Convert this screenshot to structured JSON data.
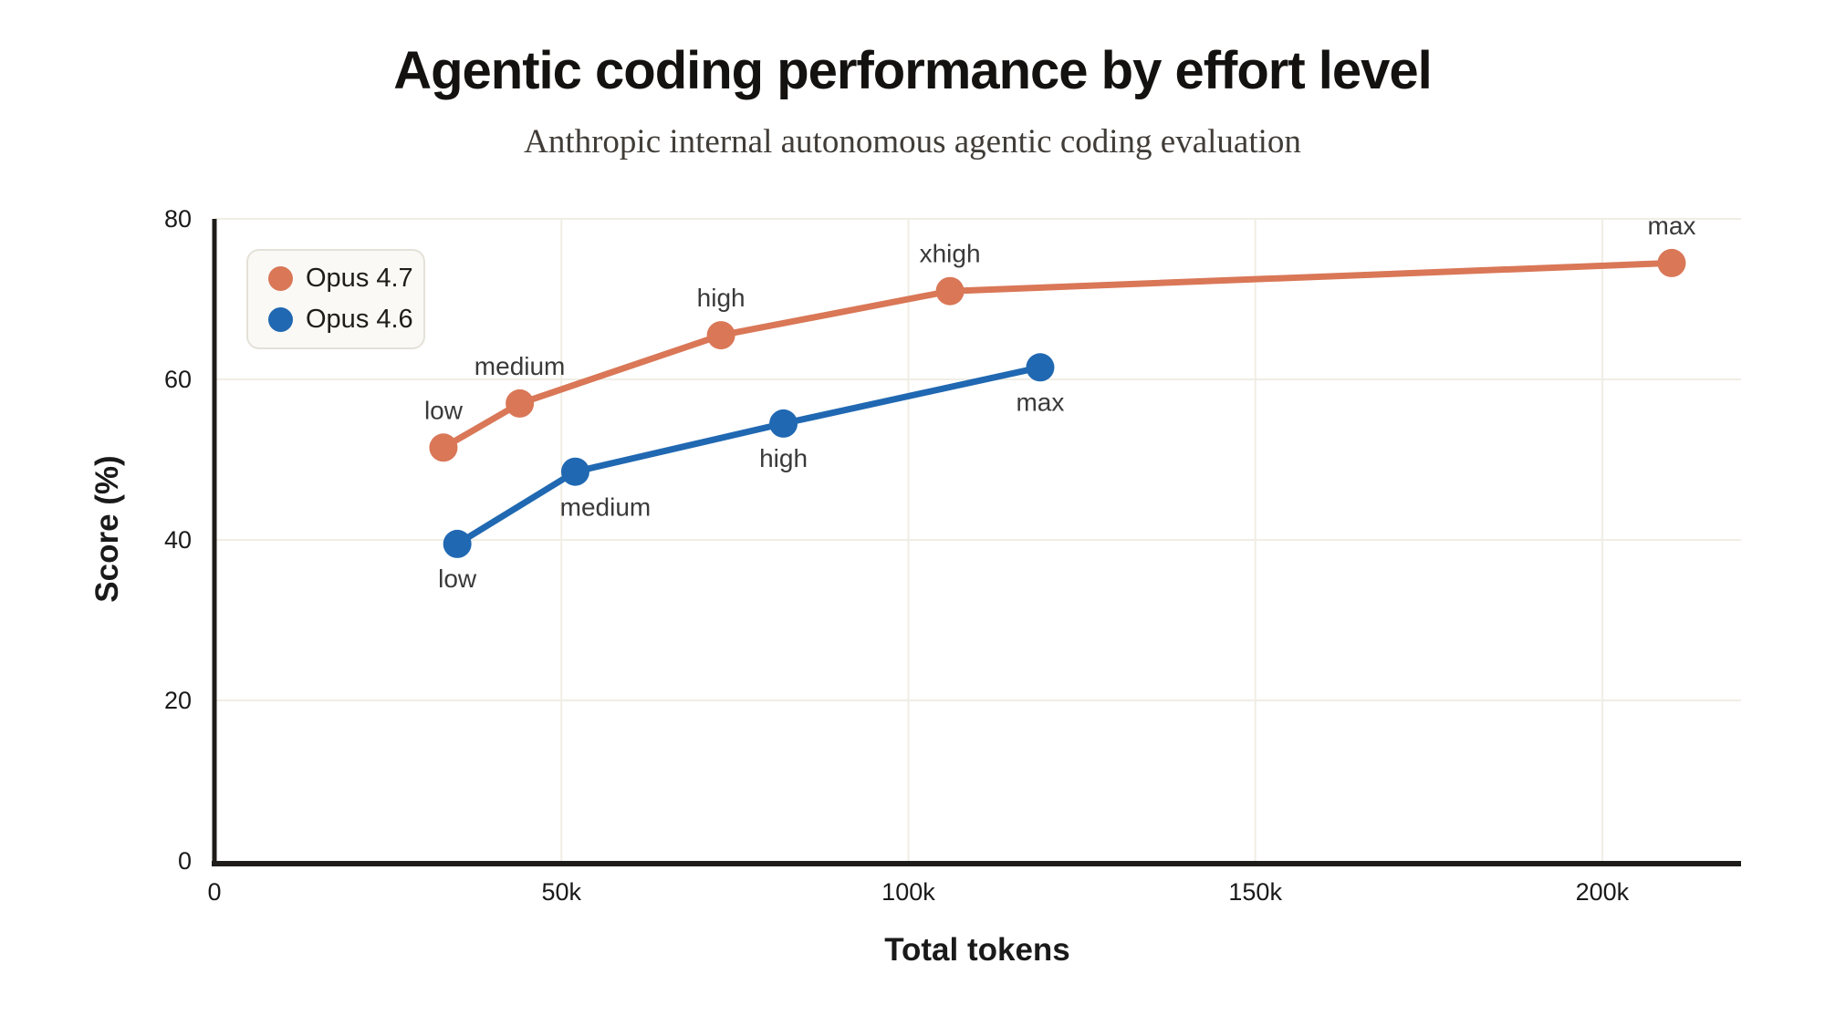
{
  "chart_data": {
    "type": "line",
    "title": "Agentic coding performance by effort level",
    "subtitle": "Anthropic internal autonomous agentic coding evaluation",
    "xlabel": "Total tokens",
    "ylabel": "Score (%)",
    "xlim": [
      0,
      220000
    ],
    "ylim": [
      0,
      80
    ],
    "grid": true,
    "legend_position": "top-left",
    "x_ticks": [
      {
        "value": 0,
        "label": "0"
      },
      {
        "value": 50000,
        "label": "50k"
      },
      {
        "value": 100000,
        "label": "100k"
      },
      {
        "value": 150000,
        "label": "150k"
      },
      {
        "value": 200000,
        "label": "200k"
      }
    ],
    "y_ticks": [
      {
        "value": 0,
        "label": "0"
      },
      {
        "value": 20,
        "label": "20"
      },
      {
        "value": 40,
        "label": "40"
      },
      {
        "value": 60,
        "label": "60"
      },
      {
        "value": 80,
        "label": "80"
      }
    ],
    "series": [
      {
        "name": "Opus 4.7",
        "color": "#d97757",
        "points": [
          {
            "label": "low",
            "x": 33000,
            "y": 51.5,
            "label_pos": "above"
          },
          {
            "label": "medium",
            "x": 44000,
            "y": 57.0,
            "label_pos": "above"
          },
          {
            "label": "high",
            "x": 73000,
            "y": 65.5,
            "label_pos": "above"
          },
          {
            "label": "xhigh",
            "x": 106000,
            "y": 71.0,
            "label_pos": "above"
          },
          {
            "label": "max",
            "x": 210000,
            "y": 74.5,
            "label_pos": "above"
          }
        ]
      },
      {
        "name": "Opus 4.6",
        "color": "#2068b2",
        "points": [
          {
            "label": "low",
            "x": 35000,
            "y": 39.5,
            "label_pos": "below"
          },
          {
            "label": "medium",
            "x": 52000,
            "y": 48.5,
            "label_pos": "below-right"
          },
          {
            "label": "high",
            "x": 82000,
            "y": 54.5,
            "label_pos": "below"
          },
          {
            "label": "max",
            "x": 119000,
            "y": 61.5,
            "label_pos": "below"
          }
        ]
      }
    ]
  },
  "colors": {
    "background": "#ffffff",
    "grid": "#f0ede4",
    "axis": "#1f1d1a",
    "tick_text": "#1a1a1a",
    "point_label_text": "#3a3a3a",
    "title_text": "#141210",
    "subtitle_text": "#403c37",
    "legend_bg": "#faf9f5",
    "legend_border": "#e4e1d8"
  }
}
